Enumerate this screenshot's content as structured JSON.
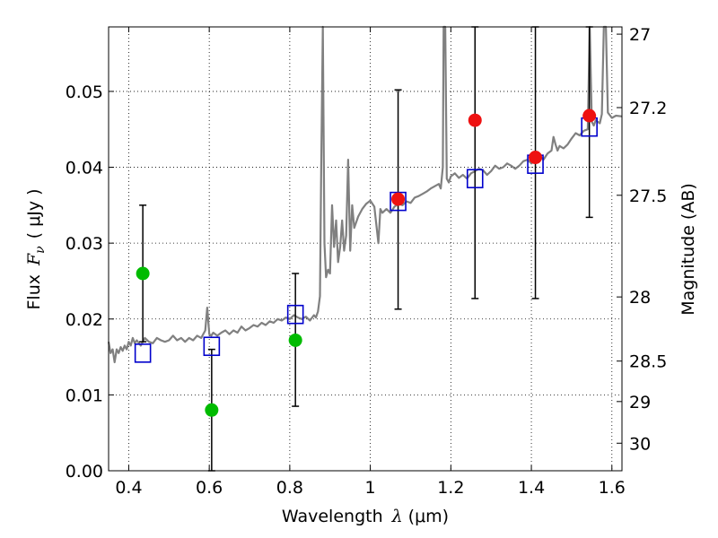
{
  "chart_data": {
    "type": "scatter",
    "xlabel": "Wavelength",
    "xlabel_symbol": "λ",
    "xlabel_unit": "(μm)",
    "ylabel": "Flux",
    "ylabel_symbol": "F",
    "ylabel_subscript": "ν",
    "ylabel_unit": "( μJy )",
    "y2label": "Magnitude (AB)",
    "xlim": [
      0.35,
      1.625
    ],
    "ylim": [
      0.0,
      0.0585
    ],
    "grid": true,
    "x_ticks": [
      {
        "value": 0.4,
        "label": "0.4"
      },
      {
        "value": 0.6,
        "label": "0.6"
      },
      {
        "value": 0.8,
        "label": "0.8"
      },
      {
        "value": 1.0,
        "label": "1"
      },
      {
        "value": 1.2,
        "label": "1.2"
      },
      {
        "value": 1.4,
        "label": "1.4"
      },
      {
        "value": 1.6,
        "label": "1.6"
      }
    ],
    "y_ticks": [
      {
        "value": 0.0,
        "label": "0.00"
      },
      {
        "value": 0.01,
        "label": "0.01"
      },
      {
        "value": 0.02,
        "label": "0.02"
      },
      {
        "value": 0.03,
        "label": "0.03"
      },
      {
        "value": 0.04,
        "label": "0.04"
      },
      {
        "value": 0.05,
        "label": "0.05"
      }
    ],
    "y2_ticks": [
      {
        "mag": 27.0,
        "label": "27"
      },
      {
        "mag": 27.2,
        "label": "27.2"
      },
      {
        "mag": 27.5,
        "label": "27.5"
      },
      {
        "mag": 28.0,
        "label": "28"
      },
      {
        "mag": 28.5,
        "label": "28.5"
      },
      {
        "mag": 29.0,
        "label": "29"
      },
      {
        "mag": 30.0,
        "label": "30"
      }
    ],
    "model_spectrum": {
      "color": "#808080",
      "points": [
        [
          0.35,
          0.017
        ],
        [
          0.355,
          0.0155
        ],
        [
          0.36,
          0.016
        ],
        [
          0.365,
          0.0143
        ],
        [
          0.37,
          0.016
        ],
        [
          0.375,
          0.0155
        ],
        [
          0.38,
          0.0163
        ],
        [
          0.385,
          0.0158
        ],
        [
          0.39,
          0.0165
        ],
        [
          0.395,
          0.016
        ],
        [
          0.4,
          0.017
        ],
        [
          0.405,
          0.0165
        ],
        [
          0.41,
          0.0175
        ],
        [
          0.415,
          0.0168
        ],
        [
          0.42,
          0.0172
        ],
        [
          0.43,
          0.0165
        ],
        [
          0.44,
          0.0175
        ],
        [
          0.45,
          0.017
        ],
        [
          0.46,
          0.0168
        ],
        [
          0.47,
          0.0175
        ],
        [
          0.48,
          0.0172
        ],
        [
          0.49,
          0.017
        ],
        [
          0.5,
          0.0172
        ],
        [
          0.51,
          0.0178
        ],
        [
          0.52,
          0.0172
        ],
        [
          0.53,
          0.0175
        ],
        [
          0.54,
          0.017
        ],
        [
          0.55,
          0.0175
        ],
        [
          0.56,
          0.0172
        ],
        [
          0.57,
          0.0178
        ],
        [
          0.58,
          0.0175
        ],
        [
          0.585,
          0.018
        ],
        [
          0.59,
          0.0185
        ],
        [
          0.595,
          0.0215
        ],
        [
          0.6,
          0.018
        ],
        [
          0.605,
          0.0178
        ],
        [
          0.61,
          0.0182
        ],
        [
          0.62,
          0.0178
        ],
        [
          0.63,
          0.0182
        ],
        [
          0.64,
          0.0185
        ],
        [
          0.65,
          0.018
        ],
        [
          0.66,
          0.0185
        ],
        [
          0.67,
          0.0182
        ],
        [
          0.68,
          0.019
        ],
        [
          0.69,
          0.0185
        ],
        [
          0.7,
          0.0188
        ],
        [
          0.71,
          0.0192
        ],
        [
          0.72,
          0.019
        ],
        [
          0.73,
          0.0195
        ],
        [
          0.74,
          0.0192
        ],
        [
          0.75,
          0.0197
        ],
        [
          0.76,
          0.0195
        ],
        [
          0.77,
          0.02
        ],
        [
          0.78,
          0.0198
        ],
        [
          0.79,
          0.0202
        ],
        [
          0.8,
          0.02
        ],
        [
          0.81,
          0.0205
        ],
        [
          0.82,
          0.0202
        ],
        [
          0.83,
          0.02
        ],
        [
          0.84,
          0.0203
        ],
        [
          0.85,
          0.0198
        ],
        [
          0.86,
          0.0205
        ],
        [
          0.865,
          0.0202
        ],
        [
          0.87,
          0.021
        ],
        [
          0.875,
          0.023
        ],
        [
          0.878,
          0.04
        ],
        [
          0.882,
          0.0585
        ],
        [
          0.886,
          0.03
        ],
        [
          0.89,
          0.0255
        ],
        [
          0.895,
          0.0265
        ],
        [
          0.9,
          0.026
        ],
        [
          0.905,
          0.035
        ],
        [
          0.91,
          0.0295
        ],
        [
          0.915,
          0.033
        ],
        [
          0.92,
          0.0275
        ],
        [
          0.925,
          0.0295
        ],
        [
          0.93,
          0.033
        ],
        [
          0.935,
          0.029
        ],
        [
          0.94,
          0.031
        ],
        [
          0.945,
          0.041
        ],
        [
          0.95,
          0.029
        ],
        [
          0.955,
          0.035
        ],
        [
          0.96,
          0.032
        ],
        [
          0.97,
          0.0335
        ],
        [
          0.98,
          0.0345
        ],
        [
          0.99,
          0.0352
        ],
        [
          1.0,
          0.0356
        ],
        [
          1.01,
          0.0348
        ],
        [
          1.02,
          0.03
        ],
        [
          1.025,
          0.0345
        ],
        [
          1.03,
          0.034
        ],
        [
          1.04,
          0.0345
        ],
        [
          1.05,
          0.034
        ],
        [
          1.06,
          0.0348
        ],
        [
          1.07,
          0.0352
        ],
        [
          1.08,
          0.035
        ],
        [
          1.09,
          0.0355
        ],
        [
          1.1,
          0.0353
        ],
        [
          1.11,
          0.036
        ],
        [
          1.12,
          0.0362
        ],
        [
          1.13,
          0.0365
        ],
        [
          1.14,
          0.0368
        ],
        [
          1.15,
          0.0372
        ],
        [
          1.16,
          0.0375
        ],
        [
          1.17,
          0.0378
        ],
        [
          1.175,
          0.0372
        ],
        [
          1.18,
          0.04
        ],
        [
          1.182,
          0.0585
        ],
        [
          1.186,
          0.0585
        ],
        [
          1.19,
          0.0385
        ],
        [
          1.195,
          0.038
        ],
        [
          1.2,
          0.0388
        ],
        [
          1.21,
          0.0392
        ],
        [
          1.22,
          0.0386
        ],
        [
          1.23,
          0.039
        ],
        [
          1.24,
          0.0385
        ],
        [
          1.25,
          0.0392
        ],
        [
          1.26,
          0.0395
        ],
        [
          1.27,
          0.0398
        ],
        [
          1.28,
          0.0396
        ],
        [
          1.29,
          0.039
        ],
        [
          1.3,
          0.0395
        ],
        [
          1.31,
          0.0402
        ],
        [
          1.32,
          0.0398
        ],
        [
          1.33,
          0.04
        ],
        [
          1.34,
          0.0405
        ],
        [
          1.35,
          0.0402
        ],
        [
          1.36,
          0.0398
        ],
        [
          1.37,
          0.0402
        ],
        [
          1.38,
          0.0408
        ],
        [
          1.39,
          0.041
        ],
        [
          1.4,
          0.0405
        ],
        [
          1.41,
          0.041
        ],
        [
          1.42,
          0.0415
        ],
        [
          1.43,
          0.041
        ],
        [
          1.44,
          0.0418
        ],
        [
          1.45,
          0.0422
        ],
        [
          1.455,
          0.044
        ],
        [
          1.46,
          0.043
        ],
        [
          1.465,
          0.0422
        ],
        [
          1.47,
          0.0428
        ],
        [
          1.48,
          0.0425
        ],
        [
          1.49,
          0.043
        ],
        [
          1.5,
          0.0438
        ],
        [
          1.51,
          0.0445
        ],
        [
          1.52,
          0.0442
        ],
        [
          1.53,
          0.0448
        ],
        [
          1.54,
          0.045
        ],
        [
          1.545,
          0.0585
        ],
        [
          1.55,
          0.046
        ],
        [
          1.555,
          0.0455
        ],
        [
          1.56,
          0.0462
        ],
        [
          1.57,
          0.0458
        ],
        [
          1.575,
          0.047
        ],
        [
          1.58,
          0.0585
        ],
        [
          1.585,
          0.0585
        ],
        [
          1.59,
          0.0472
        ],
        [
          1.6,
          0.0465
        ],
        [
          1.61,
          0.0468
        ],
        [
          1.625,
          0.0467
        ]
      ]
    },
    "model_photometry": {
      "marker": "open-square",
      "color": "#0000cc",
      "points": [
        {
          "x": 0.435,
          "y": 0.0155
        },
        {
          "x": 0.606,
          "y": 0.0164
        },
        {
          "x": 0.814,
          "y": 0.0206
        },
        {
          "x": 1.069,
          "y": 0.0355
        },
        {
          "x": 1.26,
          "y": 0.0385
        },
        {
          "x": 1.41,
          "y": 0.0404
        },
        {
          "x": 1.544,
          "y": 0.0453
        }
      ]
    },
    "observed_photometry": [
      {
        "x": 0.435,
        "y": 0.026,
        "err_low": 0.017,
        "err_high": 0.035,
        "color": "#00bb00"
      },
      {
        "x": 0.606,
        "y": 0.008,
        "err_low": 0.0,
        "err_high": 0.016,
        "color": "#00bb00"
      },
      {
        "x": 0.814,
        "y": 0.0172,
        "err_low": 0.0085,
        "err_high": 0.026,
        "color": "#00bb00"
      },
      {
        "x": 1.069,
        "y": 0.0358,
        "err_low": 0.0213,
        "err_high": 0.0502,
        "color": "#ee1111"
      },
      {
        "x": 1.26,
        "y": 0.0462,
        "err_low": 0.0227,
        "err_high": 0.0585,
        "color": "#ee1111"
      },
      {
        "x": 1.41,
        "y": 0.0413,
        "err_low": 0.0227,
        "err_high": 0.0585,
        "color": "#ee1111"
      },
      {
        "x": 1.544,
        "y": 0.0468,
        "err_low": 0.0334,
        "err_high": 0.0585,
        "color": "#ee1111"
      }
    ]
  }
}
